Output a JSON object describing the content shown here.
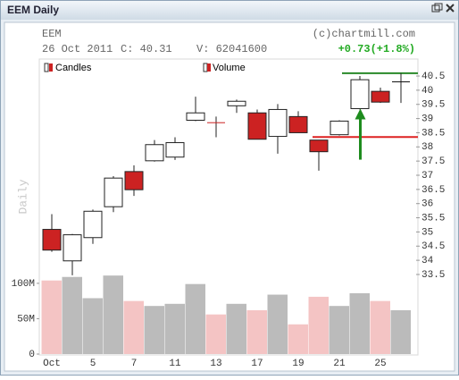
{
  "chart_data": {
    "type": "candlestick",
    "title": "EEM Daily",
    "symbol": "EEM",
    "date": "26 Oct 2011",
    "close_text": "C: 40.31",
    "volume_text": "V: 62041600",
    "change_text": "+0.73(+1.8%)",
    "copyright": "(c)chartmill.com",
    "y_label": "Daily",
    "legend": [
      "Candles",
      "Volume"
    ],
    "categories": [
      "Oct",
      null,
      "5",
      null,
      "7",
      null,
      "11",
      null,
      "13",
      null,
      "17",
      null,
      "19",
      null,
      "21",
      null,
      "25",
      null
    ],
    "open": [
      35.09,
      33.98,
      34.8,
      35.89,
      37.13,
      37.51,
      37.64,
      38.94,
      38.87,
      39.45,
      39.2,
      38.37,
      39.07,
      38.24,
      38.43,
      39.35,
      39.96,
      40.28
    ],
    "high": [
      35.63,
      34.93,
      35.79,
      36.97,
      37.35,
      38.24,
      38.34,
      39.77,
      39.07,
      39.67,
      39.32,
      39.51,
      39.26,
      38.24,
      38.94,
      40.5,
      40.09,
      40.6
    ],
    "low": [
      34.3,
      33.47,
      34.58,
      35.7,
      36.27,
      37.48,
      37.54,
      38.91,
      38.34,
      39.2,
      38.27,
      37.76,
      38.5,
      37.16,
      38.4,
      39.32,
      39.55,
      39.55
    ],
    "close": [
      34.36,
      34.9,
      35.73,
      36.9,
      36.49,
      38.08,
      38.15,
      39.2,
      38.85,
      39.61,
      38.27,
      39.32,
      38.5,
      37.83,
      38.91,
      40.37,
      39.58,
      40.31
    ],
    "up_color": "#ffffff",
    "down_color": "#cc2222",
    "ylim": [
      32.9,
      41.1
    ],
    "yticks": [
      33.5,
      34,
      34.5,
      35,
      35.5,
      36,
      36.5,
      37,
      37.5,
      38,
      38.5,
      39,
      39.5,
      40,
      40.5
    ],
    "volume": {
      "name": "Volume",
      "values": [
        104,
        109,
        79,
        111,
        75,
        68,
        71,
        99,
        56,
        71,
        62,
        84,
        42,
        81,
        68,
        86,
        75,
        62.04
      ],
      "up_color": "#bbbbbb",
      "down_color": "#f4c4c4",
      "ylim": [
        0,
        115
      ],
      "yticks": [
        0,
        {
          "value": 50,
          "label": "50M"
        },
        {
          "value": 100,
          "label": "100M"
        }
      ]
    },
    "levels": [
      {
        "value": 40.6,
        "color": "#2a8a2a"
      },
      {
        "value": 38.35,
        "color": "#dd2222"
      }
    ],
    "arrow": {
      "index": 15,
      "from": 37.55,
      "to": 39.35,
      "color": "#1e8c1e"
    }
  }
}
